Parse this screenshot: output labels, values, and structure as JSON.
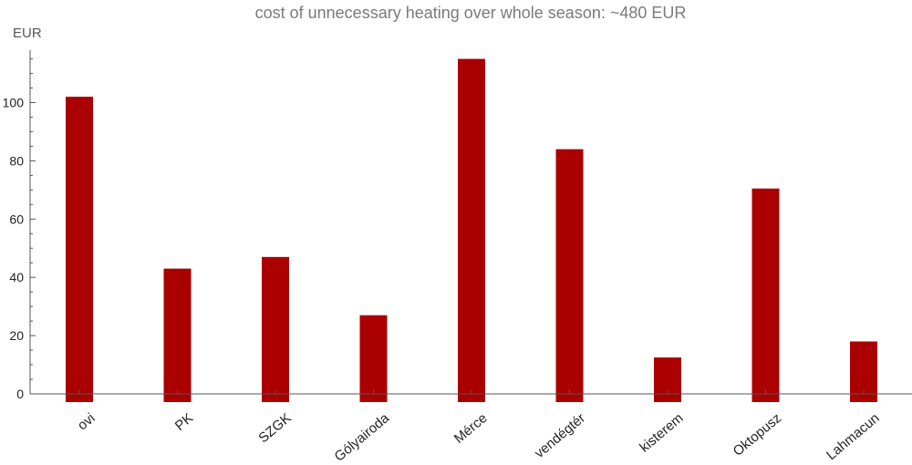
{
  "chart_data": {
    "type": "bar",
    "title": "cost of unnecessary heating over whole season: ~480 EUR",
    "ylabel": "EUR",
    "xlabel": "",
    "categories": [
      "ovi",
      "PK",
      "SZGK",
      "Gólyairoda",
      "Mérce",
      "vendégtér",
      "kisterem",
      "Oktopusz",
      "Lahmacun"
    ],
    "values": [
      102,
      43,
      47,
      27,
      115,
      84,
      12.5,
      70.5,
      18
    ],
    "ylim": [
      0,
      118
    ],
    "yticks": [
      0,
      20,
      40,
      60,
      80,
      100
    ],
    "bar_color": "#aa0000",
    "grid": false,
    "legend": "none"
  }
}
